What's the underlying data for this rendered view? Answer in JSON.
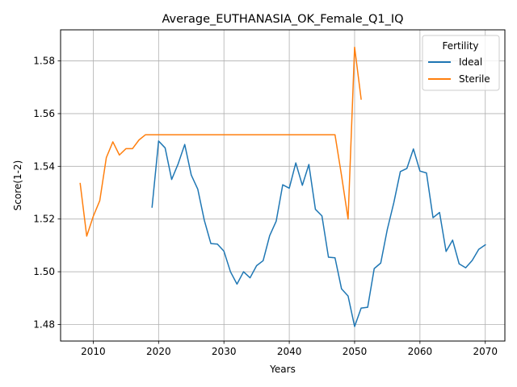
{
  "chart_data": {
    "type": "line",
    "title": "Average_EUTHANASIA_OK_Female_Q1_IQ",
    "xlabel": "Years",
    "ylabel": "Score(1-2)",
    "xlim": [
      2005,
      2073
    ],
    "ylim": [
      1.4737,
      1.5918
    ],
    "xticks": [
      2010,
      2020,
      2030,
      2040,
      2050,
      2060,
      2070
    ],
    "yticks": [
      1.48,
      1.5,
      1.52,
      1.54,
      1.56,
      1.58
    ],
    "xtick_labels": [
      "2010",
      "2020",
      "2030",
      "2040",
      "2050",
      "2060",
      "2070"
    ],
    "ytick_labels": [
      "1.48",
      "1.50",
      "1.52",
      "1.54",
      "1.56",
      "1.58"
    ],
    "grid": true,
    "legend": {
      "title": "Fertility",
      "position": "top-right"
    },
    "series": [
      {
        "name": "Ideal",
        "color": "#1f77b4",
        "x": [
          2019,
          2020,
          2021,
          2022,
          2023,
          2024,
          2025,
          2026,
          2027,
          2028,
          2029,
          2030,
          2031,
          2032,
          2033,
          2034,
          2035,
          2036,
          2037,
          2038,
          2039,
          2040,
          2041,
          2042,
          2043,
          2044,
          2045,
          2046,
          2047,
          2048,
          2049,
          2050,
          2051,
          2052,
          2053,
          2054,
          2055,
          2056,
          2057,
          2058,
          2059,
          2060,
          2061,
          2062,
          2063,
          2064,
          2065,
          2066,
          2067,
          2068,
          2069,
          2070
        ],
        "y": [
          1.5245,
          1.5496,
          1.547,
          1.535,
          1.541,
          1.5483,
          1.5367,
          1.5313,
          1.5195,
          1.5107,
          1.5105,
          1.5078,
          1.5,
          1.4953,
          1.5,
          1.4977,
          1.5023,
          1.5042,
          1.5137,
          1.5192,
          1.533,
          1.5317,
          1.5413,
          1.5328,
          1.5407,
          1.5237,
          1.5212,
          1.5055,
          1.5053,
          1.4935,
          1.4908,
          1.4792,
          1.4862,
          1.4865,
          1.5012,
          1.5033,
          1.516,
          1.5262,
          1.538,
          1.5392,
          1.5466,
          1.5382,
          1.5375,
          1.5205,
          1.5225,
          1.5077,
          1.512,
          1.503,
          1.5015,
          1.5043,
          1.5085,
          1.5102
        ]
      },
      {
        "name": "Sterile",
        "color": "#ff7f0e",
        "x": [
          2008,
          2009,
          2010,
          2011,
          2012,
          2013,
          2014,
          2015,
          2016,
          2017,
          2018,
          2019,
          2020,
          2021,
          2022,
          2023,
          2024,
          2025,
          2026,
          2027,
          2028,
          2029,
          2030,
          2031,
          2032,
          2033,
          2034,
          2035,
          2036,
          2037,
          2038,
          2039,
          2040,
          2041,
          2042,
          2043,
          2044,
          2045,
          2046,
          2047,
          2048,
          2049,
          2050,
          2051
        ],
        "y": [
          1.5335,
          1.5135,
          1.521,
          1.527,
          1.5433,
          1.5493,
          1.5443,
          1.5467,
          1.5467,
          1.55,
          1.552,
          1.552,
          1.552,
          1.552,
          1.552,
          1.552,
          1.552,
          1.552,
          1.552,
          1.552,
          1.552,
          1.552,
          1.552,
          1.552,
          1.552,
          1.552,
          1.552,
          1.552,
          1.552,
          1.552,
          1.552,
          1.552,
          1.552,
          1.552,
          1.552,
          1.552,
          1.552,
          1.552,
          1.552,
          1.552,
          1.5365,
          1.52,
          1.5852,
          1.5655
        ]
      }
    ]
  }
}
